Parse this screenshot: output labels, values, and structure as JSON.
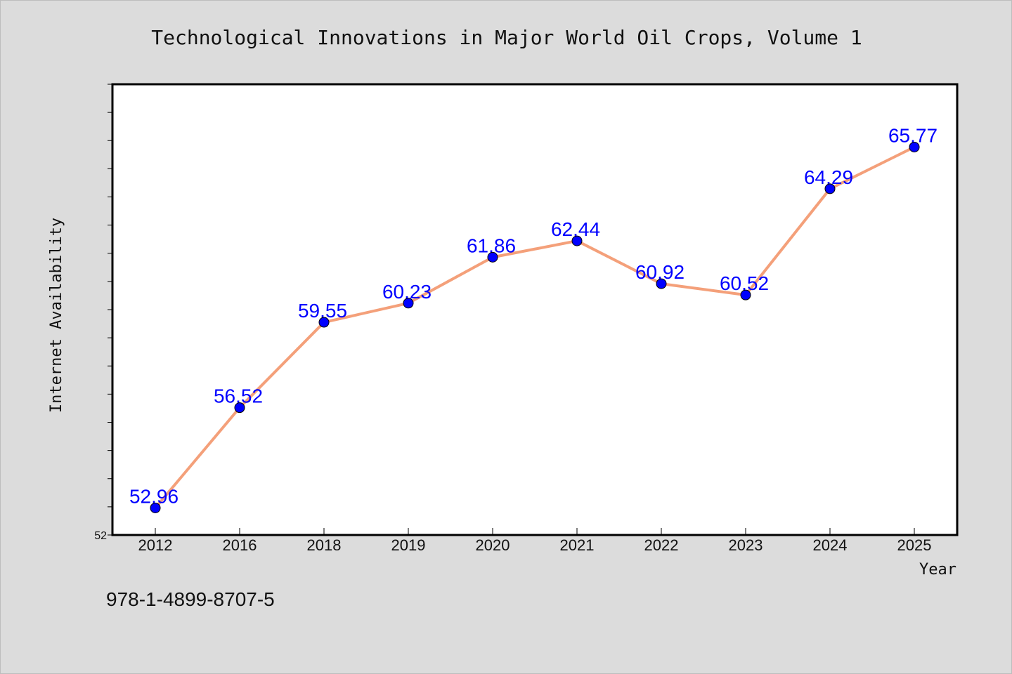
{
  "chart_data": {
    "type": "line",
    "title": "Technological Innovations in Major World Oil Crops, Volume 1",
    "xlabel": "Year",
    "ylabel": "Internet Availability",
    "categories": [
      "2012",
      "2016",
      "2018",
      "2019",
      "2020",
      "2021",
      "2022",
      "2023",
      "2024",
      "2025"
    ],
    "series": [
      {
        "values": [
          52.96,
          56.52,
          59.55,
          60.23,
          61.86,
          62.44,
          60.92,
          60.52,
          64.29,
          65.77
        ],
        "data_labels": [
          "52.96",
          "56.52",
          "59.55",
          "60.23",
          "61.86",
          "62.44",
          "60.92",
          "60.52",
          "64.29",
          "65.77"
        ]
      }
    ],
    "ylim": [
      52,
      68
    ],
    "y_tick_labels": [
      "52"
    ],
    "grid": false,
    "line_color": "#f4a07a",
    "marker_color": "#0000ff",
    "label_color": "#0000ff"
  },
  "footer_text": "978-1-4899-8707-5"
}
